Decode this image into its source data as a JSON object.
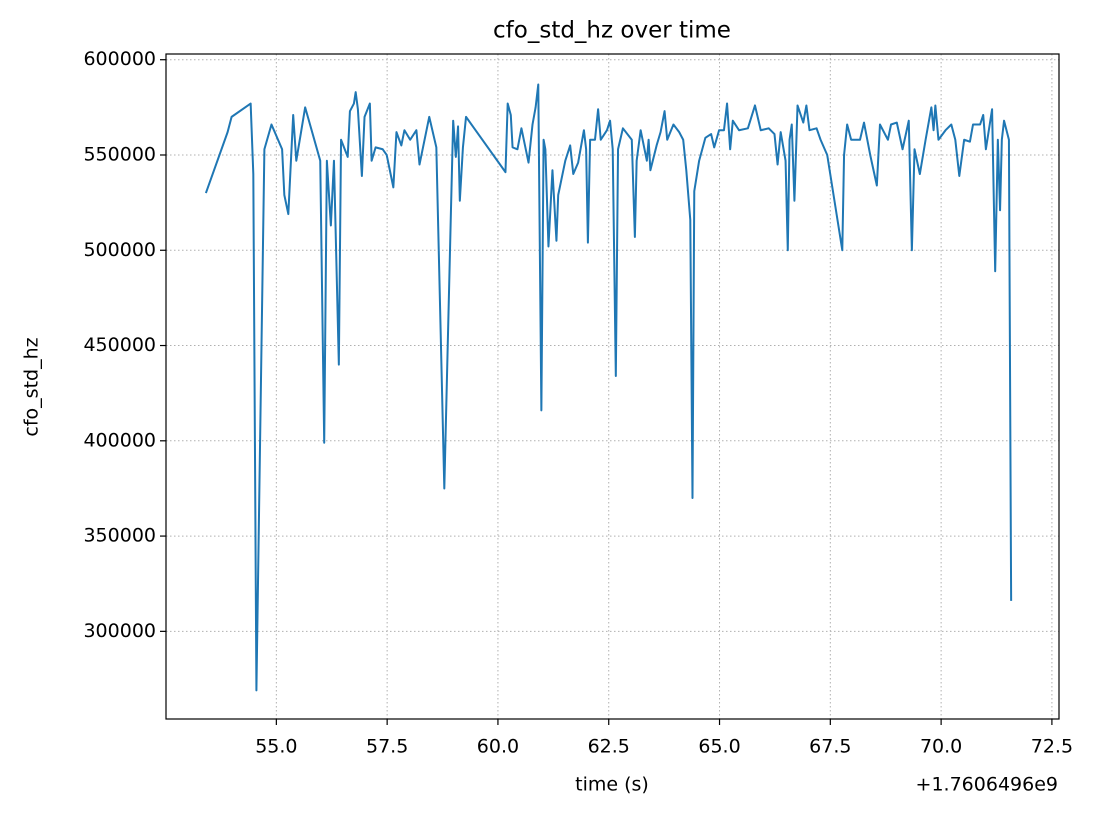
{
  "chart_data": {
    "type": "line",
    "title": "cfo_std_hz over time",
    "xlabel": "time (s)",
    "ylabel": "cfo_std_hz",
    "x_offset_label": "+1.7606496e9",
    "grid": true,
    "xlim": [
      52.51,
      72.66
    ],
    "ylim": [
      254000,
      603000
    ],
    "xticks": [
      {
        "value": 55,
        "label": "55.0"
      },
      {
        "value": 57.5,
        "label": "57.5"
      },
      {
        "value": 60,
        "label": "60.0"
      },
      {
        "value": 62.5,
        "label": "62.5"
      },
      {
        "value": 65,
        "label": "65.0"
      },
      {
        "value": 67.5,
        "label": "67.5"
      },
      {
        "value": 70,
        "label": "70.0"
      },
      {
        "value": 72.5,
        "label": "72.5"
      }
    ],
    "yticks": [
      300000,
      350000,
      400000,
      450000,
      500000,
      550000,
      600000
    ],
    "x": [
      53.41,
      53.9,
      53.99,
      54.42,
      54.48,
      54.55,
      54.73,
      54.89,
      55.13,
      55.18,
      55.27,
      55.38,
      55.45,
      55.65,
      55.99,
      56.08,
      56.14,
      56.23,
      56.3,
      56.41,
      56.46,
      56.61,
      56.66,
      56.75,
      56.79,
      56.84,
      56.93,
      56.99,
      57.11,
      57.15,
      57.24,
      57.4,
      57.49,
      57.64,
      57.71,
      57.82,
      57.89,
      58.02,
      58.16,
      58.23,
      58.45,
      58.61,
      58.79,
      58.94,
      58.99,
      59.05,
      59.1,
      59.14,
      59.21,
      59.28,
      60.17,
      60.22,
      60.29,
      60.33,
      60.44,
      60.53,
      60.69,
      60.78,
      60.85,
      60.91,
      60.98,
      61.03,
      61.07,
      61.14,
      61.23,
      61.32,
      61.36,
      61.52,
      61.63,
      61.7,
      61.81,
      61.94,
      61.99,
      62.03,
      62.08,
      62.19,
      62.26,
      62.32,
      62.46,
      62.53,
      62.59,
      62.66,
      62.71,
      62.82,
      63.02,
      63.09,
      63.13,
      63.22,
      63.36,
      63.4,
      63.44,
      63.58,
      63.67,
      63.76,
      63.82,
      63.96,
      64.09,
      64.18,
      64.25,
      64.34,
      64.39,
      64.43,
      64.54,
      64.68,
      64.81,
      64.88,
      64.99,
      65.1,
      65.17,
      65.24,
      65.3,
      65.44,
      65.64,
      65.8,
      65.93,
      66.11,
      66.24,
      66.31,
      66.38,
      66.49,
      66.54,
      66.58,
      66.63,
      66.69,
      66.76,
      66.89,
      66.96,
      67.03,
      67.19,
      67.28,
      67.43,
      67.77,
      67.81,
      67.88,
      67.97,
      68.17,
      68.26,
      68.4,
      68.55,
      68.62,
      68.8,
      68.87,
      69.0,
      69.13,
      69.27,
      69.34,
      69.4,
      69.52,
      69.65,
      69.78,
      69.83,
      69.87,
      69.94,
      70.1,
      70.23,
      70.32,
      70.41,
      70.52,
      70.65,
      70.72,
      70.88,
      70.95,
      71.01,
      71.15,
      71.22,
      71.28,
      71.33,
      71.37,
      71.42,
      71.53,
      71.58
    ],
    "series": [
      {
        "name": "cfo_std_hz",
        "color": "#1f77b4",
        "values": [
          530000,
          562000,
          570000,
          577000,
          540000,
          269000,
          553000,
          566000,
          553000,
          529000,
          519000,
          571000,
          547000,
          575000,
          547000,
          399000,
          547000,
          513000,
          547000,
          440000,
          558000,
          549000,
          573000,
          577000,
          583000,
          574000,
          539000,
          570000,
          577000,
          547000,
          554000,
          553000,
          550000,
          533000,
          562000,
          555000,
          563000,
          558000,
          563000,
          545000,
          570000,
          554000,
          375000,
          521000,
          568000,
          549000,
          565000,
          526000,
          554000,
          570000,
          541000,
          577000,
          571000,
          554000,
          553000,
          564000,
          546000,
          566000,
          575000,
          587000,
          416000,
          558000,
          553000,
          502000,
          542000,
          505000,
          529000,
          547000,
          555000,
          540000,
          546000,
          563000,
          553000,
          504000,
          558000,
          558000,
          574000,
          558000,
          563000,
          568000,
          553000,
          434000,
          553000,
          564000,
          558000,
          507000,
          547000,
          563000,
          547000,
          558000,
          542000,
          555000,
          562000,
          573000,
          558000,
          566000,
          562000,
          558000,
          542000,
          516000,
          370000,
          531000,
          547000,
          559000,
          561000,
          554000,
          563000,
          563000,
          577000,
          553000,
          568000,
          563000,
          564000,
          576000,
          563000,
          564000,
          561000,
          545000,
          562000,
          547000,
          500000,
          558000,
          566000,
          526000,
          576000,
          567000,
          576000,
          563000,
          564000,
          558000,
          550000,
          500000,
          550000,
          566000,
          558000,
          558000,
          567000,
          550000,
          534000,
          566000,
          558000,
          566000,
          567000,
          553000,
          568000,
          500000,
          553000,
          540000,
          558000,
          575000,
          563000,
          576000,
          558000,
          563000,
          566000,
          558000,
          539000,
          558000,
          557000,
          566000,
          566000,
          571000,
          553000,
          574000,
          489000,
          558000,
          521000,
          558000,
          568000,
          558000,
          316000
        ]
      }
    ]
  }
}
